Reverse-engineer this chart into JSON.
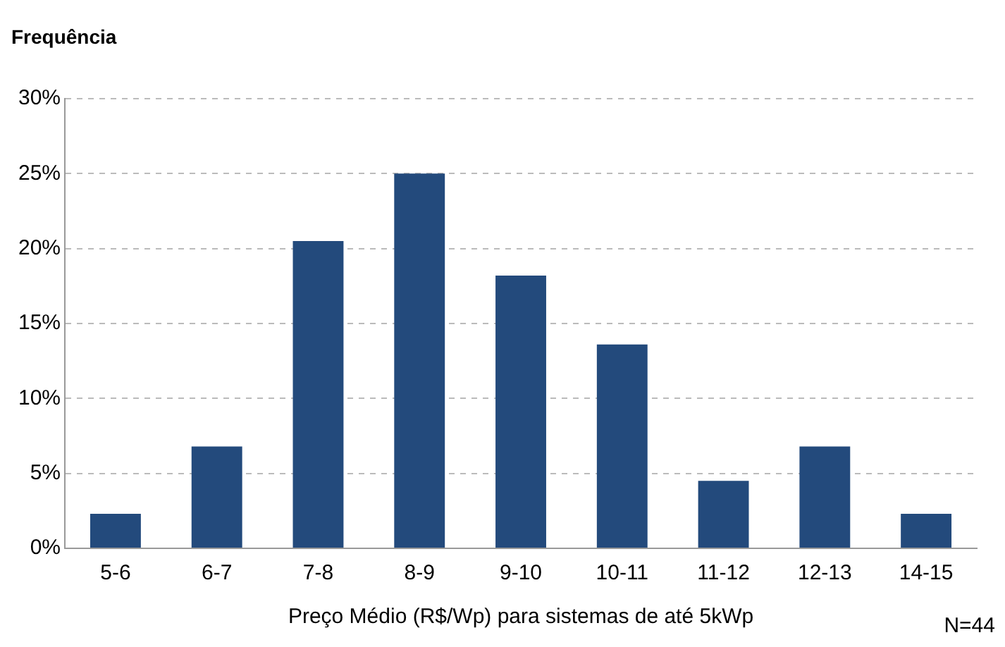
{
  "chart_data": {
    "type": "bar",
    "ylabel": "Frequência",
    "xlabel": "Preço Médio (R$/Wp) para sistemas de até 5kWp",
    "categories": [
      "5-6",
      "6-7",
      "7-8",
      "8-9",
      "9-10",
      "10-11",
      "11-12",
      "12-13",
      "14-15"
    ],
    "values": [
      2.3,
      6.8,
      20.5,
      25,
      18.2,
      13.6,
      4.5,
      6.8,
      2.3
    ],
    "color": "#234a7c",
    "ylim": [
      0,
      30
    ],
    "yticks": [
      {
        "value": 0,
        "label": "0%"
      },
      {
        "value": 5,
        "label": "5%"
      },
      {
        "value": 10,
        "label": "10%"
      },
      {
        "value": 15,
        "label": "15%"
      },
      {
        "value": 20,
        "label": "20%"
      },
      {
        "value": 25,
        "label": "25%"
      },
      {
        "value": 30,
        "label": "30%"
      }
    ],
    "grid": "y",
    "annotations": [
      "N=44"
    ]
  }
}
